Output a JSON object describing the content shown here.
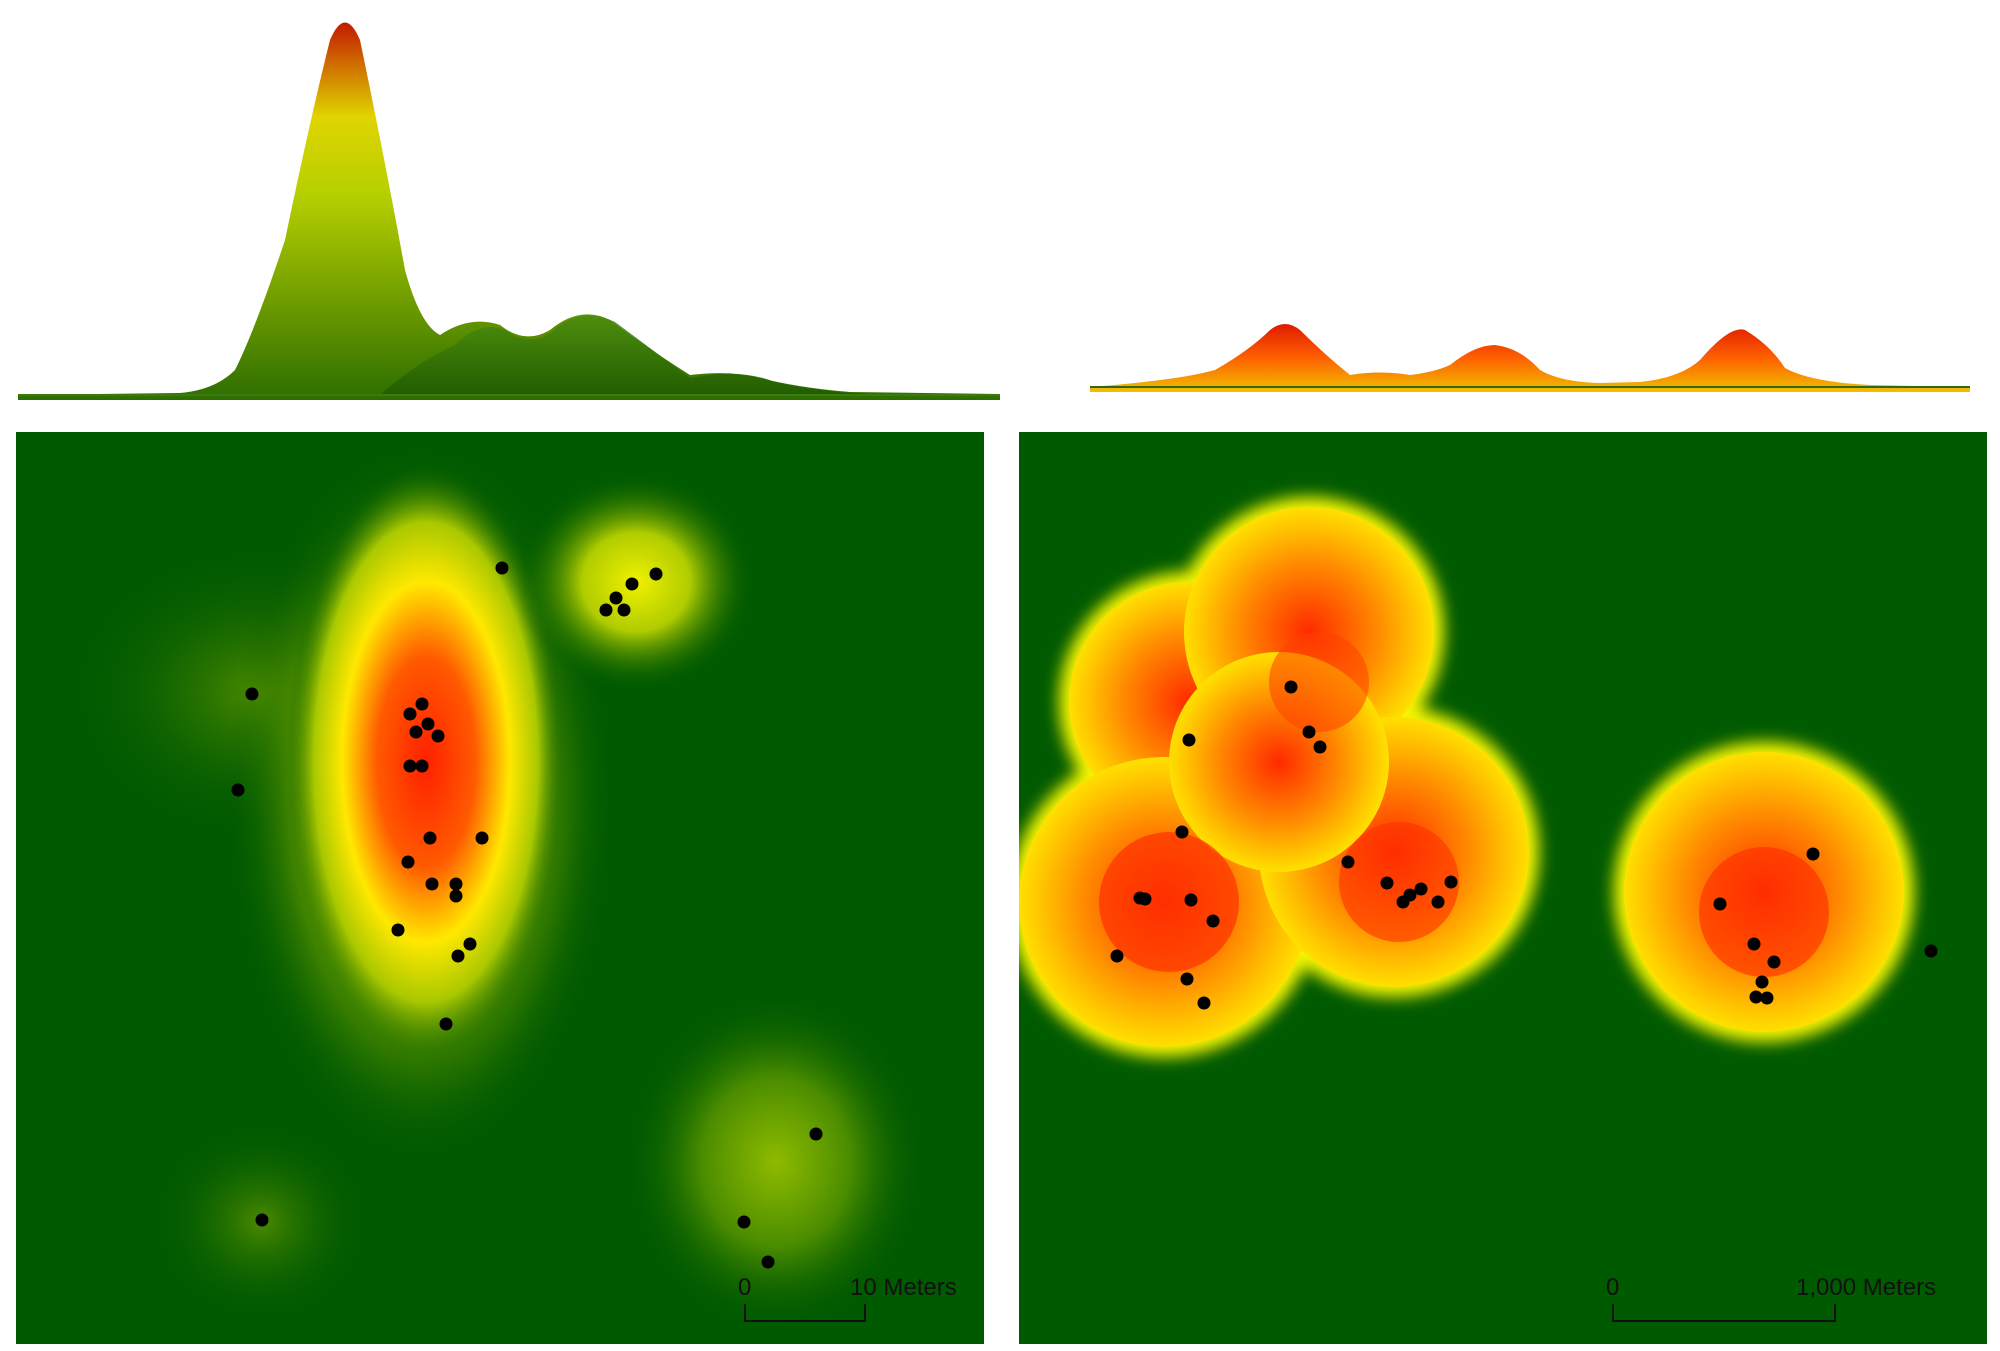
{
  "colors": {
    "background": "#005a00",
    "low": "#2f7a00",
    "mid": "#f5f500",
    "high": "#ff1a00",
    "points": "#000000"
  },
  "left_map": {
    "scale_bar": {
      "start_label": "0",
      "end_label": "10 Meters"
    }
  },
  "right_map": {
    "scale_bar": {
      "start_label": "0",
      "end_label": "1,000 Meters"
    }
  }
}
